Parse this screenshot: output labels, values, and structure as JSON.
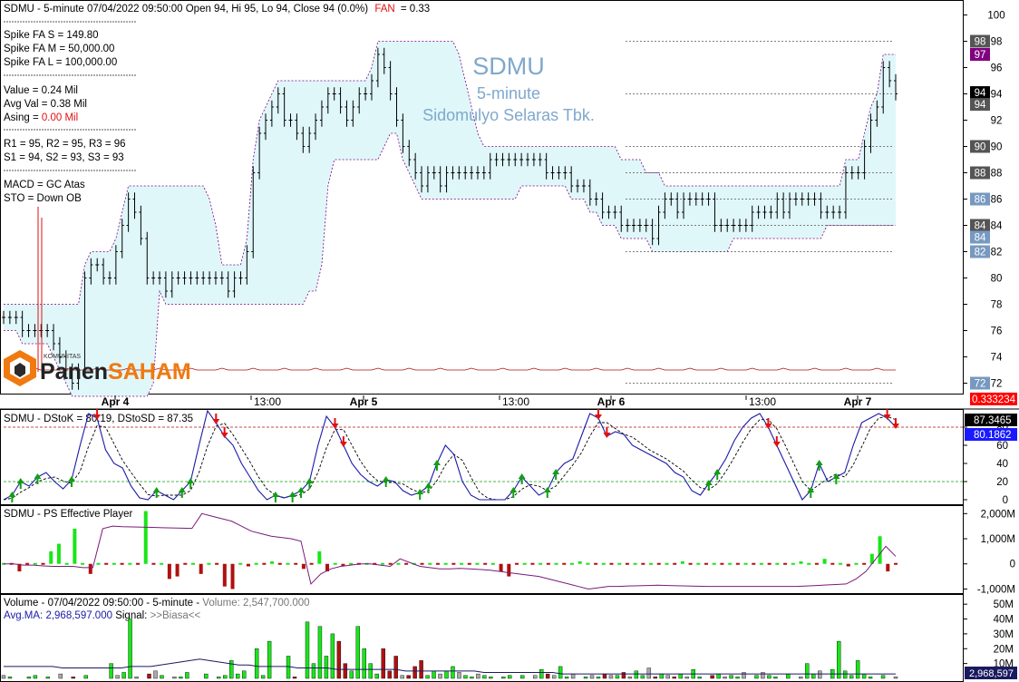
{
  "header": {
    "ticker": "SDMU",
    "line": "SDMU - 5-minute 07/04/2022 09:50:00 Open 94, Hi 95, Lo 94, Close 94 (0.0%)",
    "fan_label": "FAN",
    "fan_value": "= 0.33"
  },
  "watermark": {
    "ticker": "SDMU",
    "interval": "5-minute",
    "company": "Sidomulyo Selaras Tbk."
  },
  "info": {
    "spike_s": "Spike FA S =  149.80",
    "spike_m": "Spike FA M =  50,000.00",
    "spike_l": "Spike FA L =  100,000.00",
    "value": "Value = 0.24 Mil",
    "avg_val": "Avg Val = 0.38 Mil",
    "asing_label": "Asing = ",
    "asing_value": "0.00 Mil",
    "r_line": "R1 = 95, R2 = 95, R3 = 96",
    "s_line": "S1 = 94, S2 = 93, S3 = 93",
    "macd": "MACD =  GC Atas",
    "sto": "STO  =  Down OB"
  },
  "logo": {
    "top": "KOMUNITAS",
    "panen": "Panen",
    "saham": "SAHAM"
  },
  "colors": {
    "fill": "#e0f7fa",
    "bars": "#000000",
    "stoK": "#1a1aa8",
    "ps": "#7a1a7a",
    "green": "#19e619",
    "red": "#b01010",
    "up": "#10a010",
    "down": "#e01010"
  },
  "chart_data": [
    {
      "type": "ohlc",
      "name": "SDMU",
      "ylim": [
        71,
        101
      ],
      "y_ticks": [
        "100",
        "98",
        "96",
        "94",
        "92",
        "90",
        "88",
        "86",
        "84",
        "82",
        "80",
        "78",
        "76",
        "74",
        "72"
      ],
      "x_labels": [
        "Apr 4",
        "13:00",
        "Apr 5",
        "13:00",
        "Apr 6",
        "13:00",
        "Apr 7"
      ],
      "closes": [
        77,
        77,
        77,
        76,
        76,
        76,
        76,
        76,
        75,
        74,
        73,
        72,
        73,
        80,
        81,
        81,
        80,
        80,
        82,
        84,
        86,
        85,
        83,
        80,
        80,
        80,
        79,
        80,
        80,
        80,
        80,
        80,
        80,
        80,
        80,
        80,
        79,
        80,
        80,
        82,
        88,
        91,
        92,
        93,
        94,
        92,
        92,
        91,
        90,
        91,
        92,
        93,
        94,
        94,
        93,
        92,
        93,
        94,
        94,
        95,
        97,
        96,
        94,
        92,
        90,
        89,
        88,
        87,
        88,
        88,
        87,
        88,
        88,
        88,
        88,
        88,
        88,
        88,
        89,
        89,
        89,
        89,
        89,
        89,
        89,
        89,
        89,
        88,
        88,
        88,
        88,
        87,
        87,
        87,
        86,
        86,
        85,
        85,
        85,
        84,
        84,
        84,
        84,
        84,
        83,
        85,
        86,
        86,
        85,
        86,
        86,
        86,
        86,
        86,
        84,
        84,
        84,
        84,
        84,
        84,
        85,
        85,
        85,
        85,
        86,
        85,
        86,
        86,
        86,
        86,
        86,
        85,
        85,
        85,
        85,
        88,
        88,
        88,
        90,
        92,
        93,
        96,
        95,
        94
      ],
      "axis_tags": [
        {
          "label": "98",
          "y": 98,
          "bg": "#555555"
        },
        {
          "label": "97",
          "y": 97,
          "bg": "#800080"
        },
        {
          "label": "94",
          "y": 94.1,
          "bg": "#000000"
        },
        {
          "label": "94",
          "y": 93.2,
          "bg": "#555555"
        },
        {
          "label": "90",
          "y": 90,
          "bg": "#555555"
        },
        {
          "label": "88",
          "y": 88,
          "bg": "#555555"
        },
        {
          "label": "86",
          "y": 86,
          "bg": "#7799c0"
        },
        {
          "label": "84",
          "y": 84,
          "bg": "#555555"
        },
        {
          "label": "84",
          "y": 83.1,
          "bg": "#7799c0"
        },
        {
          "label": "82",
          "y": 82,
          "bg": "#7799c0"
        },
        {
          "label": "72",
          "y": 72,
          "bg": "#7799c0"
        },
        {
          "label": "0.333234",
          "y": 70.8,
          "bg": "#ff0000"
        }
      ]
    },
    {
      "type": "line",
      "name": "DStoK",
      "title": "SDMU - DStoK = 80.19, DStoSD = 87.35",
      "ylim": [
        -5,
        100
      ],
      "y_ticks": [
        "80",
        "60",
        "40",
        "20",
        "0"
      ],
      "tag_top": "87.3465",
      "tag_bottom": "80.1862",
      "k": [
        0,
        5,
        20,
        15,
        25,
        30,
        20,
        12,
        22,
        60,
        95,
        90,
        55,
        40,
        35,
        15,
        2,
        0,
        10,
        5,
        0,
        10,
        20,
        60,
        98,
        85,
        70,
        60,
        40,
        25,
        10,
        0,
        5,
        2,
        5,
        10,
        20,
        60,
        92,
        80,
        60,
        40,
        28,
        20,
        15,
        22,
        20,
        10,
        5,
        8,
        15,
        40,
        60,
        50,
        20,
        5,
        0,
        0,
        0,
        0,
        10,
        25,
        15,
        5,
        10,
        30,
        40,
        45,
        70,
        95,
        90,
        70,
        75,
        72,
        60,
        55,
        50,
        45,
        40,
        30,
        25,
        10,
        5,
        18,
        30,
        45,
        65,
        80,
        90,
        95,
        80,
        60,
        40,
        20,
        0,
        10,
        40,
        20,
        25,
        30,
        60,
        85,
        90,
        95,
        90,
        80
      ]
    },
    {
      "type": "bar",
      "name": "PS Effective Player",
      "title": "SDMU - PS Effective Player",
      "ylim": [
        -1200,
        2300
      ],
      "y_ticks": [
        "2,000M",
        "1,000M",
        "0",
        "-1,000M"
      ],
      "flow": [
        0,
        0,
        -300,
        0,
        0,
        0,
        500,
        800,
        0,
        1400,
        0,
        -400,
        0,
        0,
        0,
        0,
        0,
        0,
        2100,
        0,
        0,
        -600,
        -500,
        0,
        0,
        -400,
        0,
        0,
        -900,
        -1000,
        0,
        -100,
        0,
        0,
        100,
        0,
        0,
        0,
        -200,
        0,
        500,
        -300,
        0,
        -100,
        0,
        0,
        0,
        0,
        0,
        0,
        0,
        0,
        0,
        0,
        0,
        0,
        0,
        0,
        0,
        0,
        0,
        0,
        0,
        -300,
        -500,
        0,
        0,
        0,
        0,
        0,
        0,
        0,
        0,
        100,
        0,
        0,
        0,
        0,
        0,
        0,
        0,
        0,
        0,
        0,
        0,
        0,
        100,
        0,
        0,
        0,
        0,
        0,
        0,
        0,
        0,
        0,
        0,
        0,
        0,
        0,
        0,
        100,
        0,
        0,
        200,
        0,
        0,
        -100,
        0,
        0,
        400,
        1100,
        -300,
        0
      ],
      "line": [
        0,
        0,
        -50,
        -50,
        -80,
        -100,
        -100,
        -100,
        -150,
        -150,
        1400,
        1500,
        1480,
        1470,
        1460,
        1450,
        1440,
        1430,
        1420,
        1410,
        2000,
        1900,
        1800,
        1700,
        1500,
        1300,
        1200,
        1100,
        1050,
        1000,
        900,
        -800,
        -400,
        -200,
        -100,
        -50,
        0,
        0,
        -50,
        -100,
        200,
        50,
        -100,
        -150,
        -200,
        -200,
        -180,
        -200,
        -220,
        -250,
        -300,
        -350,
        -400,
        -450,
        -500,
        -600,
        -700,
        -800,
        -900,
        -1000,
        -950,
        -900,
        -900,
        -880,
        -870,
        -860,
        -850,
        -860,
        -870,
        -880,
        -890,
        -900,
        -900,
        -900,
        -900,
        -900,
        -900,
        -900,
        -900,
        -900,
        -900,
        -880,
        -860,
        -840,
        -820,
        -800,
        -600,
        -300,
        200,
        700,
        300
      ]
    },
    {
      "type": "bar",
      "name": "Volume",
      "title_left": "Volume - 07/04/2022 09:50:00 - 5-minute  - ",
      "title_vol": "Volume: 2,547,700.000",
      "avg_line_label": "Avg.MA: 2,968,597.000",
      "signal_label": "  Signal: ",
      "signal_value": ">>Biasa<<",
      "ylim": [
        0,
        55
      ],
      "y_ticks": [
        "50M",
        "40M",
        "30M",
        "20M",
        "10M"
      ],
      "tag": "2,968,597",
      "volume": [
        2,
        1,
        0,
        0,
        1,
        2,
        0,
        1,
        0,
        3,
        0,
        1,
        0,
        2,
        0,
        0,
        0,
        10,
        2,
        4,
        40,
        1,
        0,
        3,
        5,
        2,
        0,
        1,
        1,
        4,
        0,
        0,
        3,
        0,
        1,
        2,
        12,
        3,
        5,
        0,
        20,
        2,
        25,
        0,
        0,
        15,
        1,
        0,
        38,
        10,
        35,
        15,
        30,
        25,
        10,
        5,
        35,
        20,
        10,
        3,
        20,
        5,
        15,
        2,
        2,
        8,
        12,
        2,
        5,
        3,
        5,
        8,
        4,
        2,
        1,
        3,
        2,
        1,
        0,
        1,
        2,
        0,
        2,
        0,
        2,
        6,
        3,
        2,
        8,
        1,
        3,
        0,
        1,
        2,
        1,
        3,
        2,
        2,
        4,
        1,
        5,
        2,
        7,
        1,
        3,
        2,
        1,
        3,
        1,
        6,
        1,
        0,
        2,
        3,
        1,
        2,
        1,
        4,
        0,
        2,
        4,
        2,
        1,
        0,
        3,
        0,
        1,
        10,
        3,
        5,
        0,
        6,
        25,
        5,
        2,
        12,
        3,
        1,
        0,
        2,
        0,
        1
      ],
      "avg": [
        8,
        8,
        8,
        8,
        8,
        8,
        7,
        7,
        7,
        7,
        7,
        7,
        7,
        8,
        8,
        8,
        9,
        10,
        11,
        12,
        13,
        12,
        11,
        10,
        9,
        9,
        8,
        8,
        8,
        8,
        7,
        7,
        7,
        7,
        6,
        6,
        6,
        6,
        6,
        6,
        6,
        5,
        5,
        5,
        5,
        5,
        5,
        5,
        5,
        4,
        4,
        4,
        4,
        4,
        4,
        4,
        4,
        3,
        3,
        3,
        3,
        3,
        3,
        3,
        3,
        3,
        3,
        3,
        3,
        3,
        3,
        3,
        3,
        3,
        3,
        3,
        3,
        3,
        3,
        3,
        3,
        3,
        3,
        3,
        3,
        3,
        3,
        3,
        3,
        3,
        3,
        3
      ]
    }
  ]
}
